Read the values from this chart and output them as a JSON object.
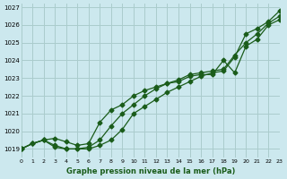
{
  "title": "Graphe pression niveau de la mer (hPa)",
  "bg_color": "#cce8ee",
  "grid_color": "#aacccc",
  "line_color": "#1a5c1a",
  "xlim": [
    0,
    23
  ],
  "ylim": [
    1018.5,
    1027.2
  ],
  "xticks": [
    0,
    1,
    2,
    3,
    4,
    5,
    6,
    7,
    8,
    9,
    10,
    11,
    12,
    13,
    14,
    15,
    16,
    17,
    18,
    19,
    20,
    21,
    22,
    23
  ],
  "yticks": [
    1019,
    1020,
    1021,
    1022,
    1023,
    1024,
    1025,
    1026,
    1027
  ],
  "line1": [
    1019.0,
    1019.3,
    1019.5,
    1019.1,
    1019.0,
    1019.0,
    1019.1,
    1019.5,
    1020.3,
    1021.0,
    1021.5,
    1022.0,
    1022.4,
    1022.7,
    1022.8,
    1023.1,
    1023.2,
    1023.2,
    1024.0,
    1023.3,
    1024.8,
    1025.2,
    1026.0,
    1026.3
  ],
  "line2": [
    1019.0,
    1019.3,
    1019.5,
    1019.6,
    1019.4,
    1019.2,
    1019.3,
    1020.5,
    1021.2,
    1021.5,
    1022.0,
    1022.3,
    1022.5,
    1022.7,
    1022.9,
    1023.2,
    1023.3,
    1023.4,
    1023.5,
    1024.3,
    1025.0,
    1025.5,
    1026.1,
    1026.5
  ],
  "line3": [
    1019.0,
    1019.3,
    1019.5,
    1019.2,
    1019.0,
    1019.0,
    1019.0,
    1019.2,
    1019.5,
    1020.1,
    1021.0,
    1021.4,
    1021.8,
    1022.2,
    1022.5,
    1022.8,
    1023.1,
    1023.3,
    1023.4,
    1024.2,
    1025.5,
    1025.8,
    1026.2,
    1026.8
  ]
}
